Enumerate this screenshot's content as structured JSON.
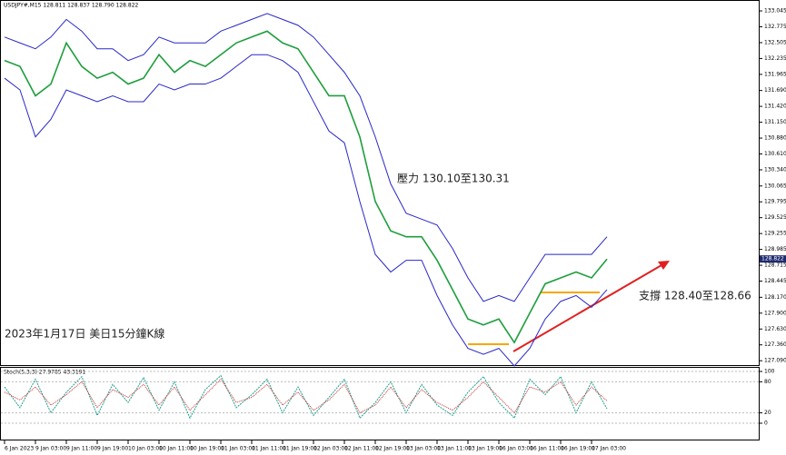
{
  "chart_data": [
    {
      "type": "line",
      "title": "USDJPY#,M15 128.811 128.837 128.790 128.822",
      "categories": [
        "6 Jan 2023",
        null,
        "9 Jan 03:00",
        null,
        "9 Jan 11:00",
        null,
        "9 Jan 19:00",
        null,
        "10 Jan 03:00",
        null,
        "10 Jan 11:00",
        null,
        "10 Jan 19:00",
        null,
        "11 Jan 03:00",
        null,
        "11 Jan 11:00",
        null,
        "11 Jan 19:00",
        null,
        "12 Jan 03:00",
        null,
        "12 Jan 11:00",
        null,
        "12 Jan 19:00",
        null,
        "13 Jan 03:00",
        null,
        "13 Jan 11:00",
        null,
        "13 Jan 19:00",
        null,
        "16 Jan 03:00",
        null,
        "16 Jan 11:00",
        null,
        "16 Jan 19:00",
        null,
        "17 Jan 03:00",
        null
      ],
      "series": [
        {
          "color": "#1e9e3c",
          "values": [
            132.2,
            132.1,
            131.6,
            131.8,
            132.5,
            132.1,
            131.9,
            132.0,
            131.8,
            131.9,
            132.3,
            132.0,
            132.2,
            132.1,
            132.3,
            132.5,
            132.6,
            132.7,
            132.5,
            132.4,
            132.0,
            131.6,
            131.6,
            130.9,
            129.8,
            129.3,
            129.2,
            129.2,
            128.8,
            128.3,
            127.8,
            127.7,
            127.8,
            127.4,
            127.9,
            128.4,
            128.5,
            128.6,
            128.5,
            128.82
          ]
        },
        {
          "color": "#2828c8",
          "values": [
            132.6,
            132.5,
            132.4,
            132.6,
            132.9,
            132.7,
            132.4,
            132.4,
            132.2,
            132.3,
            132.6,
            132.5,
            132.5,
            132.5,
            132.7,
            132.8,
            132.9,
            133.0,
            132.9,
            132.8,
            132.6,
            132.3,
            132.0,
            131.6,
            130.9,
            130.1,
            129.6,
            129.5,
            129.4,
            129.0,
            128.5,
            128.1,
            128.2,
            128.1,
            128.5,
            128.9,
            128.9,
            128.9,
            128.9,
            129.2
          ]
        },
        {
          "color": "#2828c8",
          "values": [
            131.9,
            131.7,
            130.9,
            131.2,
            131.7,
            131.6,
            131.5,
            131.6,
            131.5,
            131.5,
            131.8,
            131.7,
            131.8,
            131.8,
            131.9,
            132.1,
            132.3,
            132.3,
            132.2,
            132.0,
            131.5,
            131.0,
            130.8,
            129.8,
            128.9,
            128.6,
            128.8,
            128.8,
            128.2,
            127.7,
            127.3,
            127.2,
            127.3,
            127.0,
            127.3,
            127.8,
            128.1,
            128.2,
            128.0,
            128.3
          ]
        }
      ],
      "ylim": [
        127.0,
        133.2
      ],
      "yticks": [
        {
          "value": 133.045,
          "label": "133.045"
        },
        132.775,
        132.505,
        132.235,
        131.965,
        {
          "value": 131.69,
          "label": "131.690"
        },
        {
          "value": 131.42,
          "label": "131.420"
        },
        {
          "value": 131.15,
          "label": "131.150"
        },
        {
          "value": 130.88,
          "label": "130.880"
        },
        {
          "value": 130.61,
          "label": "130.610"
        },
        {
          "value": 130.34,
          "label": "130.340"
        },
        130.065,
        129.795,
        129.525,
        129.255,
        128.985,
        128.715,
        128.445,
        {
          "value": 128.17,
          "label": "128.170"
        },
        {
          "value": 127.9,
          "label": "127.900"
        },
        {
          "value": 127.63,
          "label": "127.630"
        },
        {
          "value": 127.36,
          "label": "127.360"
        },
        {
          "value": 127.09,
          "label": "127.090"
        }
      ],
      "last_price": 128.822,
      "annotations": [
        "壓力 130.10至130.31",
        "支撐 128.40至128.66",
        "2023年1月17日 美日15分鐘K線"
      ]
    },
    {
      "type": "line",
      "title": "Stoch(5,3,3) 27.9785 43.3191",
      "series": [
        {
          "color": "#20a090",
          "values": [
            70,
            30,
            85,
            20,
            60,
            90,
            15,
            75,
            40,
            88,
            25,
            80,
            10,
            65,
            92,
            30,
            55,
            85,
            20,
            70,
            15,
            50,
            85,
            10,
            40,
            80,
            20,
            75,
            35,
            15,
            60,
            90,
            40,
            10,
            85,
            55,
            90,
            20,
            80,
            28
          ]
        },
        {
          "color": "#c83232",
          "values": [
            60,
            45,
            70,
            35,
            55,
            80,
            30,
            65,
            50,
            75,
            35,
            70,
            25,
            55,
            85,
            40,
            50,
            75,
            35,
            60,
            25,
            45,
            75,
            20,
            35,
            70,
            30,
            65,
            40,
            25,
            50,
            80,
            50,
            20,
            70,
            60,
            80,
            35,
            70,
            43
          ]
        }
      ],
      "ylim": [
        0,
        100
      ],
      "yticks": [
        0,
        20,
        80,
        100
      ]
    }
  ]
}
